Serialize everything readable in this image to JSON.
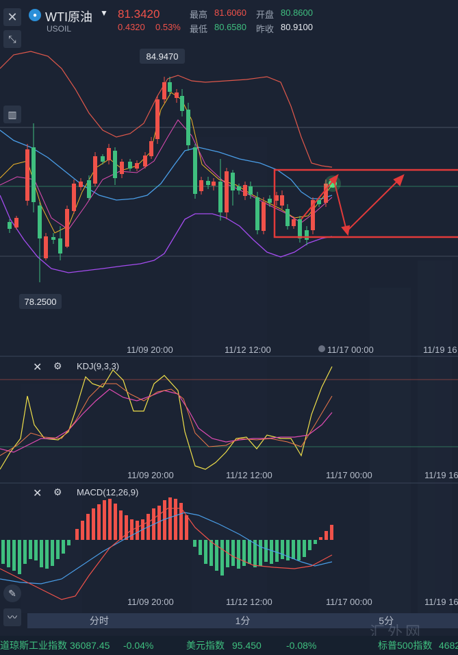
{
  "header": {
    "symbol": "WTI原油",
    "code": "USOIL",
    "price": "81.3420",
    "change": "0.4320",
    "change_pct": "0.53%",
    "high_label": "最高",
    "high": "81.6060",
    "open_label": "开盘",
    "open": "80.8600",
    "low_label": "最低",
    "low": "80.6580",
    "prev_label": "昨收",
    "prev": "80.9100"
  },
  "main_chart": {
    "max_label": "84.9470",
    "min_label": "78.2500",
    "x_ticks": [
      "11/09 20:00",
      "11/12 12:00",
      "11/17 00:00",
      "11/19 16"
    ],
    "colors": {
      "up": "#f0524a",
      "down": "#3fbf7f",
      "upper_band": "#e0584b",
      "mid": "#4a9ee8",
      "lower": "#a54cf0"
    }
  },
  "kdj": {
    "label": "KDJ(9,3,3)",
    "x_ticks": [
      "11/09 20:00",
      "11/12 12:00",
      "11/17 00:00",
      "11/19 16"
    ]
  },
  "macd": {
    "label": "MACD(12,26,9)",
    "x_ticks": [
      "11/09 20:00",
      "11/12 12:00",
      "11/17 00:00",
      "11/19 16"
    ]
  },
  "tabs": [
    "分时",
    "1分",
    "5分"
  ],
  "ticker": {
    "item1_name": "道琼斯工业指数",
    "item1_value": "36087.45",
    "item1_change": "-0.04%",
    "item2_name": "美元指数",
    "item2_value": "95.450",
    "item2_change": "-0.08%",
    "item3_name": "标普500指数",
    "item3_value": "4682"
  },
  "watermark": "汇外网",
  "icons": [
    "close-icon",
    "collapse-icon",
    "chart-type-icon",
    "draw-icon",
    "indicator-icon",
    "gear-icon"
  ]
}
